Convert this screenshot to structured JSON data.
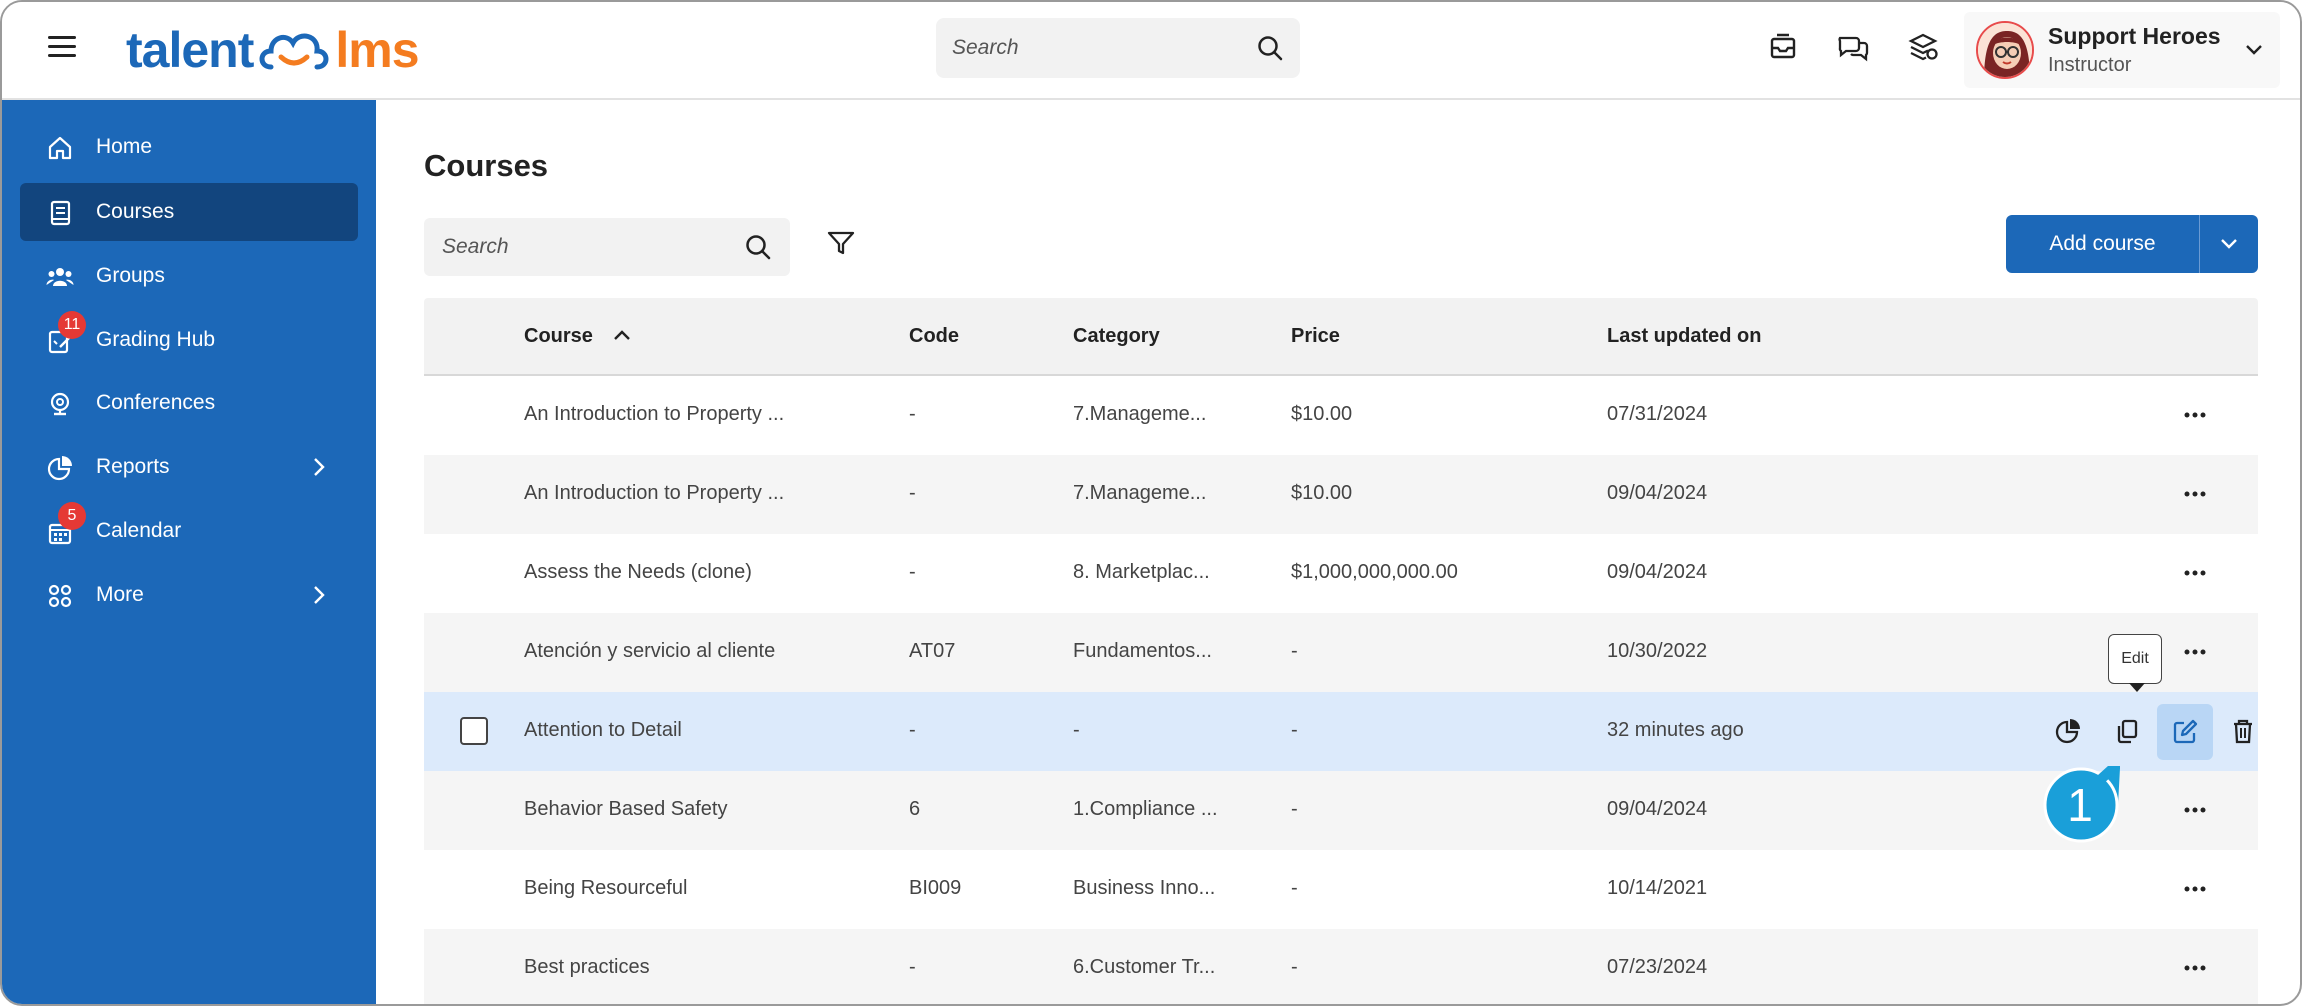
{
  "header": {
    "logo_left": "talent",
    "logo_right": "lms",
    "search_placeholder": "Search",
    "user_name": "Support Heroes",
    "user_role": "Instructor"
  },
  "sidebar": {
    "items": [
      {
        "label": "Home",
        "icon": "home-icon"
      },
      {
        "label": "Courses",
        "icon": "book-icon",
        "active": true
      },
      {
        "label": "Groups",
        "icon": "users-icon"
      },
      {
        "label": "Grading Hub",
        "icon": "grading-icon",
        "badge": "11"
      },
      {
        "label": "Conferences",
        "icon": "webcam-icon"
      },
      {
        "label": "Reports",
        "icon": "pie-chart-icon",
        "has_submenu": true
      },
      {
        "label": "Calendar",
        "icon": "calendar-icon",
        "badge": "5"
      },
      {
        "label": "More",
        "icon": "grid-icon",
        "has_submenu": true
      }
    ]
  },
  "main": {
    "title": "Courses",
    "search_placeholder": "Search",
    "add_course_label": "Add course"
  },
  "table": {
    "headers": {
      "course": "Course",
      "code": "Code",
      "category": "Category",
      "price": "Price",
      "updated": "Last updated on"
    },
    "rows": [
      {
        "course": "An Introduction to Property ...",
        "code": "-",
        "category": "7.Manageme...",
        "price": "$10.00",
        "updated": "07/31/2024"
      },
      {
        "course": "An Introduction to Property ...",
        "code": "-",
        "category": "7.Manageme...",
        "price": "$10.00",
        "updated": "09/04/2024"
      },
      {
        "course": "Assess the Needs (clone)",
        "code": "-",
        "category": "8. Marketplac...",
        "price": "$1,000,000,000.00",
        "updated": "09/04/2024"
      },
      {
        "course": "Atención y servicio al cliente",
        "code": "AT07",
        "category": "Fundamentos...",
        "price": "-",
        "updated": "10/30/2022"
      },
      {
        "course": "Attention to Detail",
        "code": "-",
        "category": "-",
        "price": "-",
        "updated": "32 minutes ago",
        "selected": true
      },
      {
        "course": "Behavior Based Safety",
        "code": "6",
        "category": "1.Compliance ...",
        "price": "-",
        "updated": "09/04/2024"
      },
      {
        "course": "Being Resourceful",
        "code": "BI009",
        "category": "Business Inno...",
        "price": "-",
        "updated": "10/14/2021"
      },
      {
        "course": "Best practices",
        "code": "-",
        "category": "6.Customer Tr...",
        "price": "-",
        "updated": "07/23/2024"
      }
    ]
  },
  "tooltip": {
    "edit": "Edit"
  },
  "callout": {
    "number": "1"
  },
  "colors": {
    "brand_blue": "#1c68b8",
    "brand_orange": "#f47c20",
    "callout": "#1a9fd9",
    "selected_row": "#dceafb"
  }
}
